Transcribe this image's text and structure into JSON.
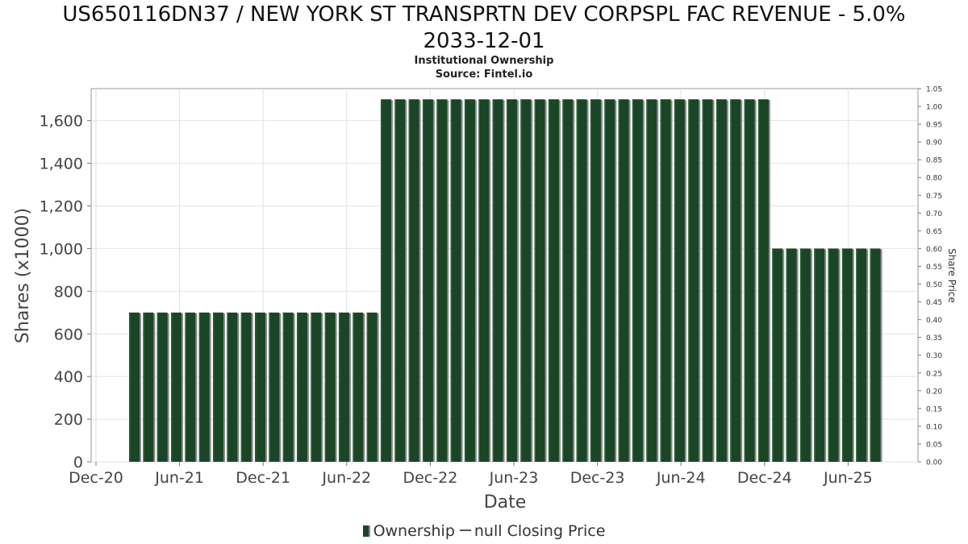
{
  "title_line1": "US650116DN37 / NEW YORK ST TRANSPRTN DEV CORPSPL FAC REVENUE - 5.0%",
  "title_line2": "2033-12-01",
  "subtitle": "Institutional Ownership",
  "source": "Source: Fintel.io",
  "legend": {
    "ownership_label": "Ownership",
    "price_label": "null Closing Price"
  },
  "chart_data": {
    "type": "bar",
    "title": "US650116DN37 / NEW YORK ST TRANSPRTN DEV CORPSPL FAC REVENUE - 5.0% 2033-12-01",
    "subtitle": "Institutional Ownership",
    "xlabel": "Date",
    "ylabel": "Shares (x1000)",
    "y2label": "Share Price",
    "ylim": [
      0,
      1750
    ],
    "y2lim": [
      0,
      1.05
    ],
    "yticks": [
      0,
      200,
      400,
      600,
      800,
      1000,
      1200,
      1400,
      1600
    ],
    "ytick_labels": [
      "0",
      "200",
      "400",
      "600",
      "800",
      "1,000",
      "1,200",
      "1,400",
      "1,600"
    ],
    "y2ticks": [
      "0.00",
      "0.05",
      "0.10",
      "0.15",
      "0.20",
      "0.25",
      "0.30",
      "0.35",
      "0.40",
      "0.45",
      "0.50",
      "0.55",
      "0.60",
      "0.65",
      "0.70",
      "0.75",
      "0.80",
      "0.85",
      "0.90",
      "0.95",
      "1.00",
      "1.05"
    ],
    "xticks": [
      "Dec-20",
      "Jun-21",
      "Dec-21",
      "Jun-22",
      "Dec-22",
      "Jun-23",
      "Dec-23",
      "Jun-24",
      "Dec-24",
      "Jun-25"
    ],
    "grid": true,
    "legend_position": "bottom",
    "colors": {
      "bar": "#1a4526",
      "bar_shadow": "#8a8a8a"
    },
    "series": [
      {
        "name": "Ownership",
        "values": [
          700,
          700,
          700,
          700,
          700,
          700,
          700,
          700,
          700,
          700,
          700,
          700,
          700,
          700,
          700,
          700,
          700,
          700,
          1700,
          1700,
          1700,
          1700,
          1700,
          1700,
          1700,
          1700,
          1700,
          1700,
          1700,
          1700,
          1700,
          1700,
          1700,
          1700,
          1700,
          1700,
          1700,
          1700,
          1700,
          1700,
          1700,
          1700,
          1700,
          1700,
          1700,
          1700,
          1000,
          1000,
          1000,
          1000,
          1000,
          1000,
          1000,
          1000
        ]
      }
    ]
  }
}
